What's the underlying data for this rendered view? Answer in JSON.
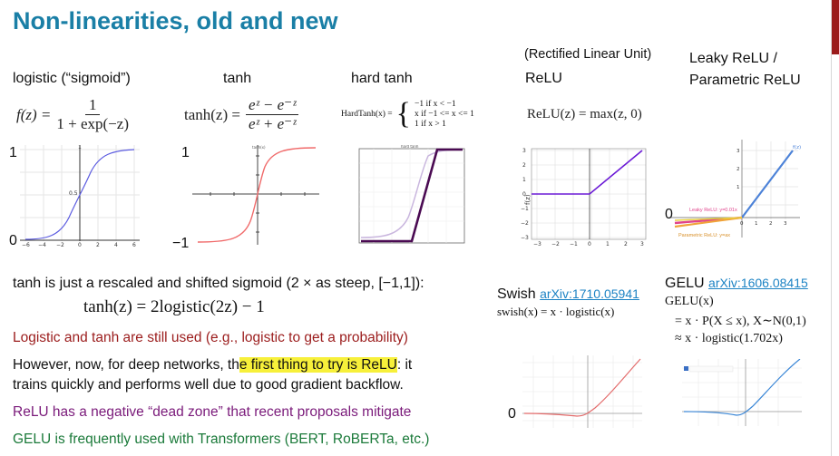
{
  "title": "Non-linearities, old and new",
  "headers": {
    "logistic": "logistic (“sigmoid”)",
    "tanh": "tanh",
    "hardtanh": "hard tanh",
    "relu_sub": "(Rectified Linear Unit)",
    "relu": "ReLU",
    "leaky_line1": "Leaky ReLU /",
    "leaky_line2": "Parametric ReLU"
  },
  "formulas": {
    "logistic_lhs": "f(z) =",
    "logistic_num": "1",
    "logistic_den": "1 + exp(−z)",
    "tanh_lhs": "tanh(z) =",
    "tanh_num": "eᶻ − e⁻ᶻ",
    "tanh_den": "eᶻ + e⁻ᶻ",
    "hardtanh_lhs": "HardTanh(x) =",
    "hardtanh_cases": [
      "−1   if x < −1",
      "x    if −1 <= x <= 1",
      "1    if x > 1"
    ],
    "relu": "ReLU(z) = max(z, 0)"
  },
  "axis_marks": {
    "logistic_top": "1",
    "logistic_bottom": "0",
    "tanh_top": "1",
    "tanh_bottom": "−1",
    "leaky_zero": "0",
    "swish_zero": "0"
  },
  "leaky_legend": {
    "leaky": "Leaky ReLU: y=0.01x",
    "param": "Parametric ReLU: y=ax"
  },
  "text": {
    "rescaled": "tanh is just a rescaled and shifted sigmoid (2 × as steep, [−1,1]):",
    "rescaled_formula": "tanh(z) = 2logistic(2z) − 1",
    "still_used": "Logistic and tanh are still used (e.g., logistic to get a probability)",
    "however_pre": "However, now, for deep networks, th",
    "however_hl": "e first thing to try is ReLU",
    "however_post": ": it",
    "however_line2": "trains quickly and performs well due to good gradient backflow.",
    "dead_zone": "ReLU has a negative “dead zone” that recent proposals mitigate",
    "gelu_note": "GELU is frequently used with Transformers (BERT, RoBERTa, etc.)"
  },
  "swish": {
    "label": "Swish",
    "link": "arXiv:1710.05941",
    "formula": "swish(x) = x · logistic(x)"
  },
  "gelu": {
    "label": "GELU",
    "link": "arXiv:1606.08415",
    "line1": "GELU(x)",
    "line2": "= x · P(X ≤ x), X∼N(0,1)",
    "line3": "≈ x · logistic(1.702x)"
  },
  "colors": {
    "title": "#1a7fa6",
    "still_used": "#9b1c1c",
    "dead_zone": "#7a1a7a",
    "gelu_note": "#1b7a3a",
    "link": "#1d83c4",
    "highlight": "#f7f03a"
  }
}
